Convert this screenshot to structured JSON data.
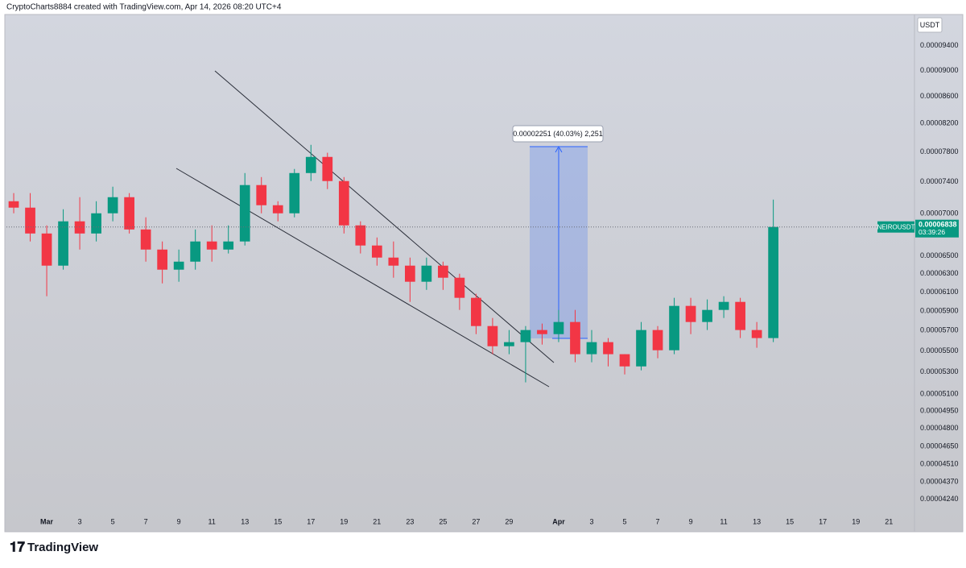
{
  "header": "CryptoCharts8884 created with TradingView.com, Apr 14, 2026 08:20 UTC+4",
  "brand": "TradingView",
  "chart_data": {
    "type": "candlestick",
    "currency": "USDT",
    "log_scale": true,
    "grid": false,
    "up_color": "#089981",
    "down_color": "#f23645",
    "countdown": "03:39:26",
    "measure_label": "0.00002251 (40.03%) 2,251",
    "xlim": [
      -2.44,
      52.5
    ],
    "xticks": [
      {
        "value": 0,
        "label": "Mar"
      },
      {
        "value": 2,
        "label": "3"
      },
      {
        "value": 4,
        "label": "5"
      },
      {
        "value": 6,
        "label": "7"
      },
      {
        "value": 8,
        "label": "9"
      },
      {
        "value": 10,
        "label": "11"
      },
      {
        "value": 12,
        "label": "13"
      },
      {
        "value": 14,
        "label": "15"
      },
      {
        "value": 16,
        "label": "17"
      },
      {
        "value": 18,
        "label": "19"
      },
      {
        "value": 20,
        "label": "21"
      },
      {
        "value": 22,
        "label": "23"
      },
      {
        "value": 24,
        "label": "25"
      },
      {
        "value": 26,
        "label": "27"
      },
      {
        "value": 28,
        "label": "29"
      },
      {
        "value": 31,
        "label": "Apr"
      },
      {
        "value": 33,
        "label": "3"
      },
      {
        "value": 35,
        "label": "5"
      },
      {
        "value": 37,
        "label": "7"
      },
      {
        "value": 39,
        "label": "9"
      },
      {
        "value": 41,
        "label": "11"
      },
      {
        "value": 43,
        "label": "13"
      },
      {
        "value": 45,
        "label": "15"
      },
      {
        "value": 47,
        "label": "17"
      },
      {
        "value": 49,
        "label": "19"
      },
      {
        "value": 51,
        "label": "21"
      }
    ],
    "ylim": [
      4.16e-05,
      9.93e-05
    ],
    "yticks": [
      {
        "value": 9.4e-05,
        "label": "0.00009400"
      },
      {
        "value": 9e-05,
        "label": "0.00009000"
      },
      {
        "value": 8.6e-05,
        "label": "0.00008600"
      },
      {
        "value": 8.2e-05,
        "label": "0.00008200"
      },
      {
        "value": 7.8e-05,
        "label": "0.00007800"
      },
      {
        "value": 7.4e-05,
        "label": "0.00007400"
      },
      {
        "value": 7e-05,
        "label": "0.00007000"
      },
      {
        "value": 6.5e-05,
        "label": "0.00006500"
      },
      {
        "value": 6.3e-05,
        "label": "0.00006300"
      },
      {
        "value": 6.1e-05,
        "label": "0.00006100"
      },
      {
        "value": 5.9e-05,
        "label": "0.00005900"
      },
      {
        "value": 5.7e-05,
        "label": "0.00005700"
      },
      {
        "value": 5.5e-05,
        "label": "0.00005500"
      },
      {
        "value": 5.3e-05,
        "label": "0.00005300"
      },
      {
        "value": 5.1e-05,
        "label": "0.00005100"
      },
      {
        "value": 4.95e-05,
        "label": "0.00004950"
      },
      {
        "value": 4.8e-05,
        "label": "0.00004800"
      },
      {
        "value": 4.65e-05,
        "label": "0.00004650"
      },
      {
        "value": 4.51e-05,
        "label": "0.00004510"
      },
      {
        "value": 4.37e-05,
        "label": "0.00004370"
      },
      {
        "value": 4.24e-05,
        "label": "0.00004240"
      }
    ],
    "series": [
      {
        "name": "NEIROUSDT",
        "x": [
          -2,
          -1,
          0,
          1,
          2,
          3,
          4,
          5,
          6,
          7,
          8,
          9,
          10,
          11,
          12,
          13,
          14,
          15,
          16,
          17,
          18,
          19,
          20,
          21,
          22,
          23,
          24,
          25,
          26,
          27,
          28,
          29,
          30,
          31,
          32,
          33,
          34,
          35,
          36,
          37,
          38,
          39,
          40,
          41,
          42,
          43,
          44
        ],
        "open": [
          7.154e-05,
          7.074e-05,
          6.76e-05,
          6.389e-05,
          6.906e-05,
          6.76e-05,
          7.004e-05,
          7.205e-05,
          6.808e-05,
          6.572e-05,
          6.344e-05,
          6.434e-05,
          6.666e-05,
          6.572e-05,
          6.666e-05,
          7.36e-05,
          7.104e-05,
          7.004e-05,
          7.517e-05,
          7.733e-05,
          7.412e-05,
          6.857e-05,
          6.619e-05,
          6.48e-05,
          6.389e-05,
          6.211e-05,
          6.389e-05,
          6.255e-05,
          6.038e-05,
          5.746e-05,
          5.546e-05,
          5.586e-05,
          5.706e-05,
          5.665e-05,
          5.787e-05,
          5.469e-05,
          5.586e-05,
          5.469e-05,
          5.353e-05,
          5.706e-05,
          5.507e-05,
          5.953e-05,
          5.787e-05,
          5.911e-05,
          5.995e-05,
          5.706e-05,
          5.626e-05
        ],
        "high": [
          7.257e-05,
          7.257e-05,
          6.857e-05,
          7.054e-05,
          7.205e-05,
          7.154e-05,
          7.339e-05,
          7.257e-05,
          6.955e-05,
          6.666e-05,
          6.572e-05,
          6.808e-05,
          6.857e-05,
          6.857e-05,
          7.517e-05,
          7.464e-05,
          7.154e-05,
          7.571e-05,
          7.899e-05,
          7.79e-05,
          7.464e-05,
          6.906e-05,
          6.713e-05,
          6.666e-05,
          6.48e-05,
          6.48e-05,
          6.434e-05,
          6.299e-05,
          6.081e-05,
          5.828e-05,
          5.706e-05,
          5.746e-05,
          5.771e-05,
          5.911e-05,
          5.911e-05,
          5.706e-05,
          5.626e-05,
          5.469e-05,
          5.787e-05,
          5.746e-05,
          6.038e-05,
          6.038e-05,
          6.021e-05,
          6.055e-05,
          6.038e-05,
          5.787e-05,
          7.174e-05
        ],
        "low": [
          7.004e-05,
          6.666e-05,
          6.055e-05,
          6.344e-05,
          6.572e-05,
          6.666e-05,
          6.906e-05,
          6.76e-05,
          6.434e-05,
          6.193e-05,
          6.211e-05,
          6.344e-05,
          6.434e-05,
          6.527e-05,
          6.619e-05,
          7.004e-05,
          6.906e-05,
          6.955e-05,
          7.412e-05,
          7.308e-05,
          6.76e-05,
          6.527e-05,
          6.389e-05,
          6.255e-05,
          5.995e-05,
          6.123e-05,
          6.123e-05,
          5.911e-05,
          5.665e-05,
          5.469e-05,
          5.469e-05,
          5.205e-05,
          5.562e-05,
          5.586e-05,
          5.392e-05,
          5.392e-05,
          5.353e-05,
          5.278e-05,
          5.316e-05,
          5.43e-05,
          5.469e-05,
          5.665e-05,
          5.706e-05,
          5.828e-05,
          5.626e-05,
          5.531e-05,
          5.586e-05
        ],
        "close": [
          7.074e-05,
          6.76e-05,
          6.389e-05,
          6.906e-05,
          6.76e-05,
          7.004e-05,
          7.205e-05,
          6.808e-05,
          6.572e-05,
          6.344e-05,
          6.434e-05,
          6.666e-05,
          6.572e-05,
          6.666e-05,
          7.36e-05,
          7.104e-05,
          7.004e-05,
          7.517e-05,
          7.733e-05,
          7.412e-05,
          6.857e-05,
          6.619e-05,
          6.48e-05,
          6.389e-05,
          6.211e-05,
          6.389e-05,
          6.255e-05,
          6.038e-05,
          5.746e-05,
          5.546e-05,
          5.586e-05,
          5.706e-05,
          5.665e-05,
          5.787e-05,
          5.469e-05,
          5.586e-05,
          5.469e-05,
          5.353e-05,
          5.706e-05,
          5.507e-05,
          5.953e-05,
          5.787e-05,
          5.911e-05,
          5.995e-05,
          5.706e-05,
          5.626e-05,
          6.838e-05
        ]
      }
    ]
  }
}
